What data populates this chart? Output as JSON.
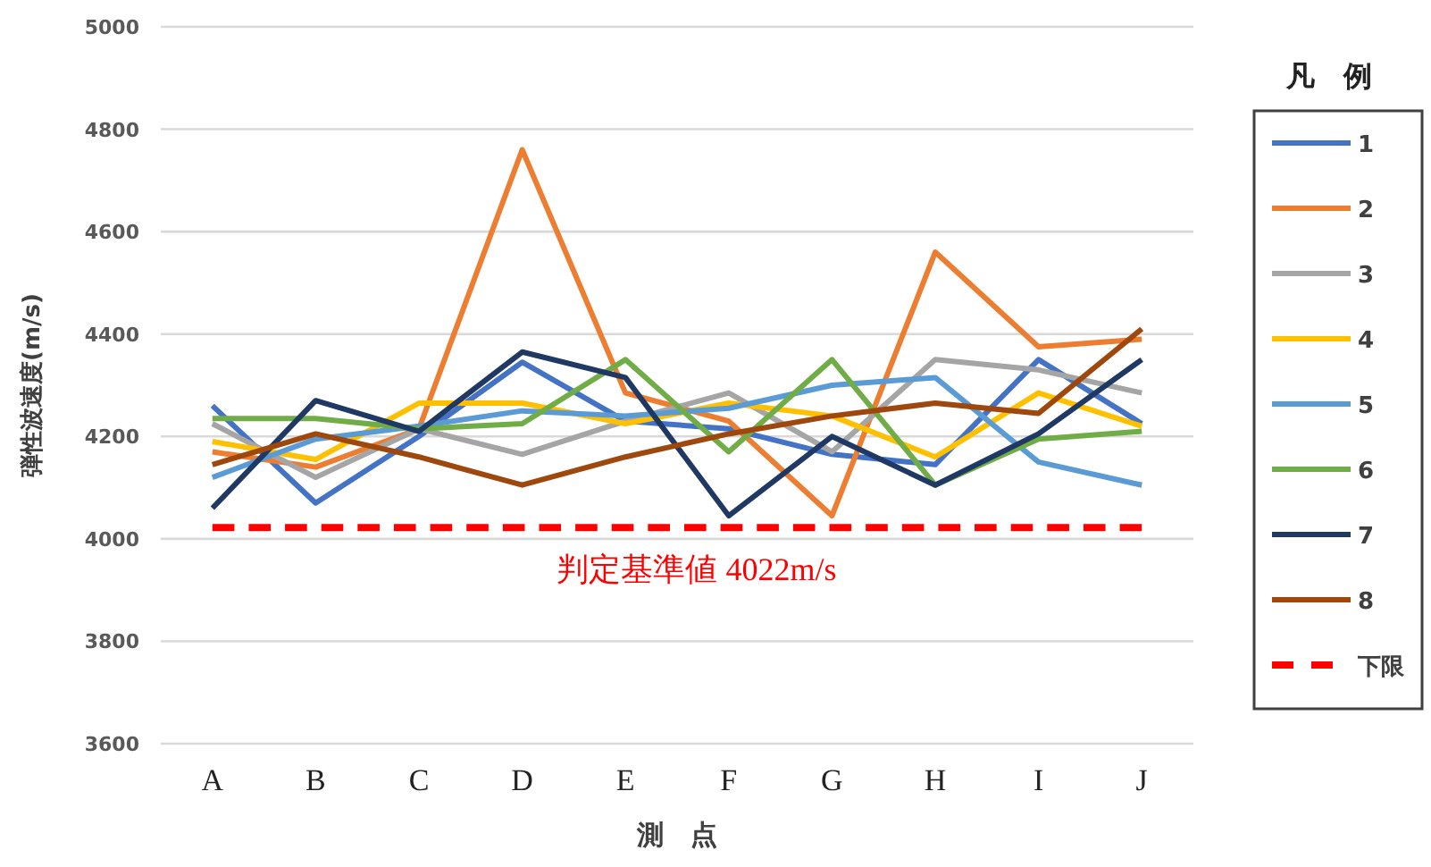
{
  "chart_data": {
    "type": "line",
    "xlabel": "測　点",
    "ylabel": "弾性波速度(m/s)",
    "legend_title": "凡　例",
    "categories": [
      "A",
      "B",
      "C",
      "D",
      "E",
      "F",
      "G",
      "H",
      "I",
      "J"
    ],
    "ylim": [
      3600,
      5000
    ],
    "yticks": [
      3600,
      3800,
      4000,
      4200,
      4400,
      4600,
      4800,
      5000
    ],
    "grid": "y",
    "legend": "right",
    "series": [
      {
        "name": "1",
        "color": "#4472c4",
        "values": [
          4260,
          4070,
          4200,
          4345,
          4230,
          4215,
          4165,
          4145,
          4350,
          4225
        ]
      },
      {
        "name": "2",
        "color": "#ed7d31",
        "values": [
          4170,
          4140,
          4215,
          4760,
          4285,
          4230,
          4045,
          4560,
          4375,
          4390
        ]
      },
      {
        "name": "3",
        "color": "#a5a5a5",
        "values": [
          4225,
          4120,
          4215,
          4165,
          4230,
          4285,
          4170,
          4350,
          4330,
          4285
        ]
      },
      {
        "name": "4",
        "color": "#ffc000",
        "values": [
          4190,
          4155,
          4265,
          4265,
          4225,
          4265,
          4240,
          4160,
          4285,
          4220
        ]
      },
      {
        "name": "5",
        "color": "#5b9bd5",
        "values": [
          4120,
          4195,
          4220,
          4250,
          4240,
          4255,
          4300,
          4315,
          4150,
          4105
        ]
      },
      {
        "name": "6",
        "color": "#70ad47",
        "values": [
          4235,
          4235,
          4215,
          4225,
          4350,
          4170,
          4350,
          4105,
          4195,
          4210
        ]
      },
      {
        "name": "7",
        "color": "#203864",
        "values": [
          4060,
          4270,
          4210,
          4365,
          4315,
          4045,
          4200,
          4105,
          4205,
          4350
        ]
      },
      {
        "name": "8",
        "color": "#9e480e",
        "values": [
          4145,
          4205,
          4160,
          4105,
          4160,
          4205,
          4240,
          4265,
          4245,
          4410
        ]
      },
      {
        "name": "下限",
        "color": "#ff0000",
        "line_style": "dashed",
        "values": [
          4022,
          4022,
          4022,
          4022,
          4022,
          4022,
          4022,
          4022,
          4022,
          4022
        ]
      }
    ],
    "annotations": [
      "判定基準値 4022m/s"
    ]
  }
}
